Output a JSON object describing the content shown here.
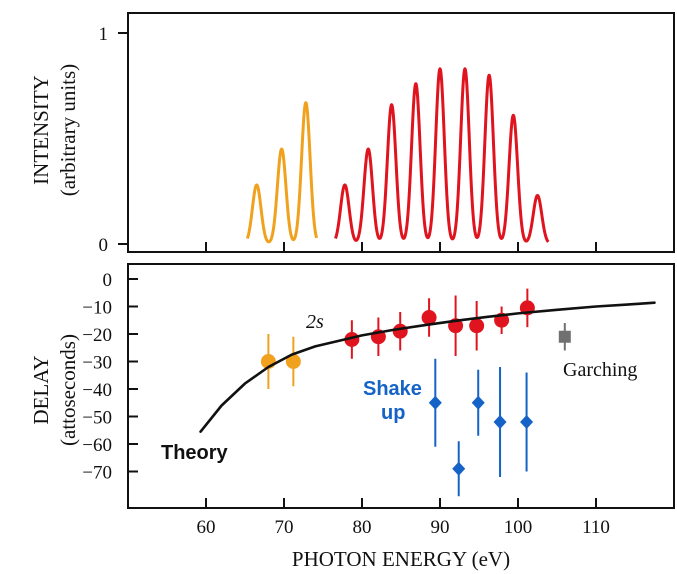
{
  "chart_data": [
    {
      "type": "line",
      "ylabel": "INTENSITY",
      "ylabel_units": "(arbitrary units)",
      "xlim": [
        50,
        120
      ],
      "ylim": [
        0,
        1
      ],
      "yticks": [
        0,
        1
      ],
      "yticklabels": [
        "0",
        "1"
      ],
      "grid": false,
      "series": [
        {
          "color": "#f0a21f",
          "peaks": [
            {
              "x": 66.5,
              "y": 0.28
            },
            {
              "x": 69.7,
              "y": 0.45
            },
            {
              "x": 72.8,
              "y": 0.67
            }
          ]
        },
        {
          "color": "#e0141e",
          "peaks": [
            {
              "x": 77.8,
              "y": 0.28
            },
            {
              "x": 80.8,
              "y": 0.45
            },
            {
              "x": 83.8,
              "y": 0.66
            },
            {
              "x": 86.9,
              "y": 0.76
            },
            {
              "x": 90.0,
              "y": 0.83
            },
            {
              "x": 93.2,
              "y": 0.83
            },
            {
              "x": 96.3,
              "y": 0.8
            },
            {
              "x": 99.4,
              "y": 0.61
            },
            {
              "x": 102.5,
              "y": 0.23
            }
          ]
        }
      ]
    },
    {
      "type": "scatter",
      "xlabel": "PHOTON ENERGY (eV)",
      "ylabel": "DELAY",
      "ylabel_units": "(attoseconds)",
      "xlim": [
        50,
        120
      ],
      "ylim": [
        -80,
        5
      ],
      "xticks": [
        60,
        70,
        80,
        90,
        100,
        110
      ],
      "xticklabels": [
        "60",
        "70",
        "80",
        "90",
        "100",
        "110"
      ],
      "yticks": [
        0,
        -10,
        -20,
        -30,
        -40,
        -50,
        -60,
        -70
      ],
      "yticklabels": [
        "0",
        "−10",
        "−20",
        "−30",
        "−40",
        "−50",
        "−60",
        "−70"
      ],
      "grid": false,
      "series": [
        {
          "marker": "circle",
          "color": "#f0a21f",
          "points": [
            {
              "x": 68.0,
              "y": -30,
              "err": 10
            },
            {
              "x": 71.2,
              "y": -30,
              "err": 9
            }
          ]
        },
        {
          "marker": "circle",
          "color": "#e0141e",
          "points": [
            {
              "x": 78.7,
              "y": -22,
              "err": 7
            },
            {
              "x": 82.1,
              "y": -21,
              "err": 7
            },
            {
              "x": 84.9,
              "y": -19,
              "err": 7
            },
            {
              "x": 88.6,
              "y": -14,
              "err": 7
            },
            {
              "x": 92.0,
              "y": -17,
              "err": 11
            },
            {
              "x": 94.7,
              "y": -17,
              "err": 9
            },
            {
              "x": 97.9,
              "y": -15,
              "err": 5
            },
            {
              "x": 101.2,
              "y": -10.5,
              "err": 7
            }
          ]
        },
        {
          "marker": "diamond",
          "color": "#1563c6",
          "points": [
            {
              "x": 89.4,
              "y": -45,
              "err": 16
            },
            {
              "x": 92.4,
              "y": -69,
              "err": 10
            },
            {
              "x": 94.9,
              "y": -45,
              "err": 12
            },
            {
              "x": 97.7,
              "y": -52,
              "err": 20
            },
            {
              "x": 101.1,
              "y": -52,
              "err": 18
            }
          ]
        },
        {
          "marker": "square",
          "color": "#707070",
          "points": [
            {
              "x": 106.0,
              "y": -21,
              "err": 5
            }
          ]
        },
        {
          "marker": "line",
          "color": "#111111",
          "points": [
            {
              "x": 59.3,
              "y": -55.5
            },
            {
              "x": 62.0,
              "y": -46.0
            },
            {
              "x": 65.0,
              "y": -38.0
            },
            {
              "x": 68.0,
              "y": -32.0
            },
            {
              "x": 71.0,
              "y": -27.5
            },
            {
              "x": 74.0,
              "y": -24.5
            },
            {
              "x": 77.0,
              "y": -22.5
            },
            {
              "x": 80.0,
              "y": -20.5
            },
            {
              "x": 84.0,
              "y": -18.5
            },
            {
              "x": 88.0,
              "y": -16.8
            },
            {
              "x": 92.0,
              "y": -15.2
            },
            {
              "x": 96.0,
              "y": -13.8
            },
            {
              "x": 100.0,
              "y": -12.5
            },
            {
              "x": 105.0,
              "y": -11.2
            },
            {
              "x": 110.0,
              "y": -10.0
            },
            {
              "x": 114.0,
              "y": -9.3
            },
            {
              "x": 117.5,
              "y": -8.6
            }
          ]
        }
      ],
      "annotations": {
        "theory": "Theory",
        "twos": "2s",
        "shake1": "Shake",
        "shake2": "up",
        "garching": "Garching"
      }
    }
  ]
}
